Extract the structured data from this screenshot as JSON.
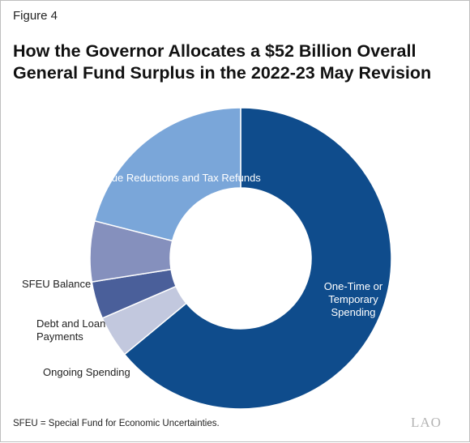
{
  "figure_label": "Figure 4",
  "title": "How the Governor Allocates a $52 Billion Overall General Fund Surplus in the 2022-23 May Revision",
  "chart_data": {
    "type": "pie",
    "donut": true,
    "slices": [
      {
        "label": "One-Time or Temporary Spending",
        "value": 0.64,
        "color": "#0f4c8c"
      },
      {
        "label": "Ongoing Spending",
        "value": 0.045,
        "color": "#c2c8de"
      },
      {
        "label": "Debt and Loan Payments",
        "value": 0.04,
        "color": "#4a5f9a"
      },
      {
        "label": "SFEU Balance",
        "value": 0.065,
        "color": "#8590bd"
      },
      {
        "label": "Revenue Reductions and Tax Refunds",
        "value": 0.21,
        "color": "#7aa6d9"
      }
    ]
  },
  "footnote": "SFEU = Special Fund for Economic Uncertainties.",
  "logo_text": "LAO"
}
